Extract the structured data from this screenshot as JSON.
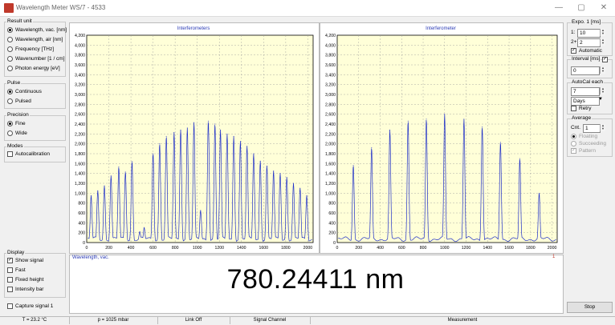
{
  "window": {
    "title": "Wavelength Meter WS/7 - 4533",
    "minimize_glyph": "—",
    "maximize_glyph": "▢",
    "close_glyph": "✕"
  },
  "result_unit": {
    "label": "Result unit",
    "options": [
      {
        "label": "Wavelength, vac. [nm]",
        "selected": true
      },
      {
        "label": "Wavelength, air [nm]",
        "selected": false
      },
      {
        "label": "Frequency [THz]",
        "selected": false
      },
      {
        "label": "Wavenumber [1 / cm]",
        "selected": false
      },
      {
        "label": "Photon energy [eV]",
        "selected": false
      }
    ]
  },
  "pulse": {
    "label": "Pulse",
    "options": [
      {
        "label": "Continuous",
        "selected": true
      },
      {
        "label": "Pulsed",
        "selected": false
      }
    ]
  },
  "precision": {
    "label": "Precision",
    "options": [
      {
        "label": "Fine",
        "selected": true
      },
      {
        "label": "Wide",
        "selected": false
      }
    ]
  },
  "modes": {
    "label": "Modes",
    "autocalibration": "Autocalibration",
    "autocalibration_checked": false
  },
  "display": {
    "label": "Display",
    "options": [
      {
        "label": "Show signal",
        "checked": true
      },
      {
        "label": "Fast",
        "checked": false
      },
      {
        "label": "Fixed height",
        "checked": false
      },
      {
        "label": "Intensity bar",
        "checked": false
      }
    ],
    "capture_label": "Capture signal 1",
    "capture_checked": false
  },
  "charts": {
    "left_title": "Interferometers",
    "right_title": "Interferometer",
    "y_ticks": [
      "4,200",
      "4,000",
      "3,800",
      "3,600",
      "3,400",
      "3,200",
      "3,000",
      "2,800",
      "2,600",
      "2,400",
      "2,200",
      "2,000",
      "1,800",
      "1,600",
      "1,400",
      "1,200",
      "1,000",
      "800",
      "600",
      "400",
      "200",
      "0"
    ],
    "x_ticks": [
      "0",
      "200",
      "400",
      "600",
      "800",
      "1000",
      "1200",
      "1400",
      "1600",
      "1800",
      "2000"
    ]
  },
  "chart_data": [
    {
      "type": "line",
      "title": "Interferometers",
      "xlim": [
        0,
        2048
      ],
      "ylim": [
        0,
        4200
      ],
      "grid": true,
      "line_color": "#1f2fc8",
      "x": [
        40,
        100,
        160,
        220,
        290,
        350,
        410,
        480,
        520,
        600,
        660,
        720,
        790,
        850,
        910,
        970,
        1030,
        1100,
        1160,
        1210,
        1270,
        1330,
        1390,
        1450,
        1510,
        1570,
        1630,
        1690,
        1750,
        1810,
        1870,
        1930,
        1990
      ],
      "y": [
        950,
        1050,
        1150,
        1350,
        1530,
        1430,
        1640,
        220,
        300,
        1800,
        2000,
        2150,
        2230,
        2280,
        2320,
        2430,
        650,
        2460,
        2400,
        2280,
        2200,
        2150,
        2050,
        1950,
        1800,
        1650,
        1550,
        1450,
        1400,
        1320,
        1200,
        1100,
        950
      ]
    },
    {
      "type": "line",
      "title": "Interferometer",
      "xlim": [
        0,
        2048
      ],
      "ylim": [
        0,
        4200
      ],
      "grid": true,
      "line_color": "#1f2fc8",
      "x": [
        150,
        320,
        490,
        660,
        830,
        1000,
        1180,
        1350,
        1520,
        1700,
        1880
      ],
      "y": [
        1560,
        1920,
        2280,
        2460,
        2500,
        2600,
        2500,
        2340,
        2030,
        1700,
        1000
      ]
    }
  ],
  "readout": {
    "label": "Wavelength, vac.",
    "value": "780.24411 nm",
    "marker": "1"
  },
  "exposure": {
    "label": "Expo. 1 [ms]",
    "row1_label": "1:",
    "row1_value": "10",
    "row2_label": "2+",
    "row2_value": "2",
    "automatic_label": "Automatic",
    "automatic_checked": true
  },
  "interval": {
    "label": "Interval [ms]",
    "value": "0",
    "checked": true
  },
  "autocal": {
    "label": "AutoCal each",
    "value": "7",
    "unit": "Days",
    "retry_label": "Retry",
    "retry_checked": false
  },
  "average": {
    "label": "Average",
    "cnt_label": "Cnt.",
    "cnt_value": "1",
    "options": [
      "Floating",
      "Succeeding",
      "Pattern"
    ]
  },
  "buttons": {
    "stop": "Stop"
  },
  "status": {
    "temperature": "T = 23.2 °C",
    "pressure": "p = 1025 mbar",
    "link": "Link Off",
    "channel": "Signal Channel",
    "measurement": "Measurement"
  },
  "colors": {
    "plot_bg": "#ffffd8",
    "trace": "#1f2fc8",
    "accent_red": "#c0392b"
  }
}
